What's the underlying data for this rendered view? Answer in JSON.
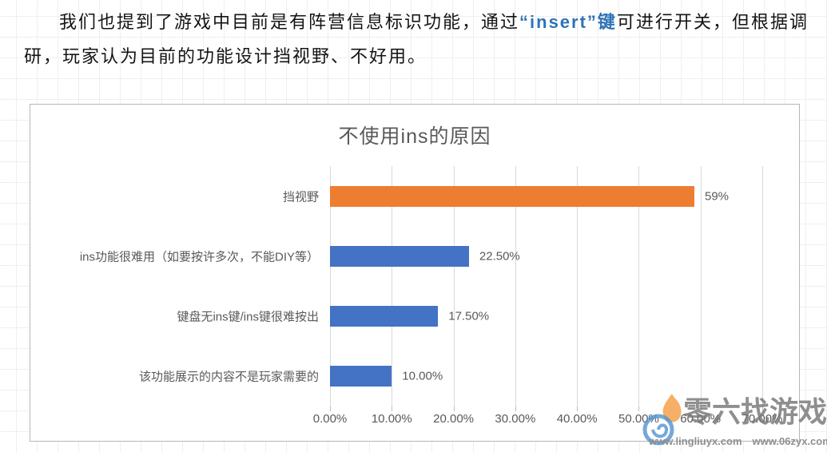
{
  "paragraph": {
    "part1": "我们也提到了游戏中目前是有阵营信息标识功能，通过",
    "highlight": "“insert”键",
    "part2": "可进行开关，但根据调",
    "part3": "研，玩家认为目前的功能设计挡视野、不好用。",
    "highlight_color": "#2E74B5"
  },
  "chart_data": {
    "type": "bar",
    "orientation": "horizontal",
    "title": "不使用ins的原因",
    "categories": [
      "挡视野",
      "ins功能很难用（如要按许多次，不能DIY等）",
      "键盘无ins键/ins键很难按出",
      "该功能展示的内容不是玩家需要的"
    ],
    "values": [
      59,
      22.5,
      17.5,
      10
    ],
    "value_labels": [
      "59%",
      "22.50%",
      "17.50%",
      "10.00%"
    ],
    "bar_colors": [
      "#ED7D31",
      "#4472C4",
      "#4472C4",
      "#4472C4"
    ],
    "x_ticks": [
      "0.00%",
      "10.00%",
      "20.00%",
      "30.00%",
      "40.00%",
      "50.00%",
      "60.00%",
      "70.00%"
    ],
    "xlim": [
      0,
      70
    ],
    "grid": true,
    "legend": false
  },
  "watermark": {
    "brand_text": "零六找游戏",
    "url1": "www.lingliuyx.com",
    "url2": "www.06zyx.com",
    "flame_color": "#F5A14B",
    "swirl_color": "#4D8FD1"
  }
}
